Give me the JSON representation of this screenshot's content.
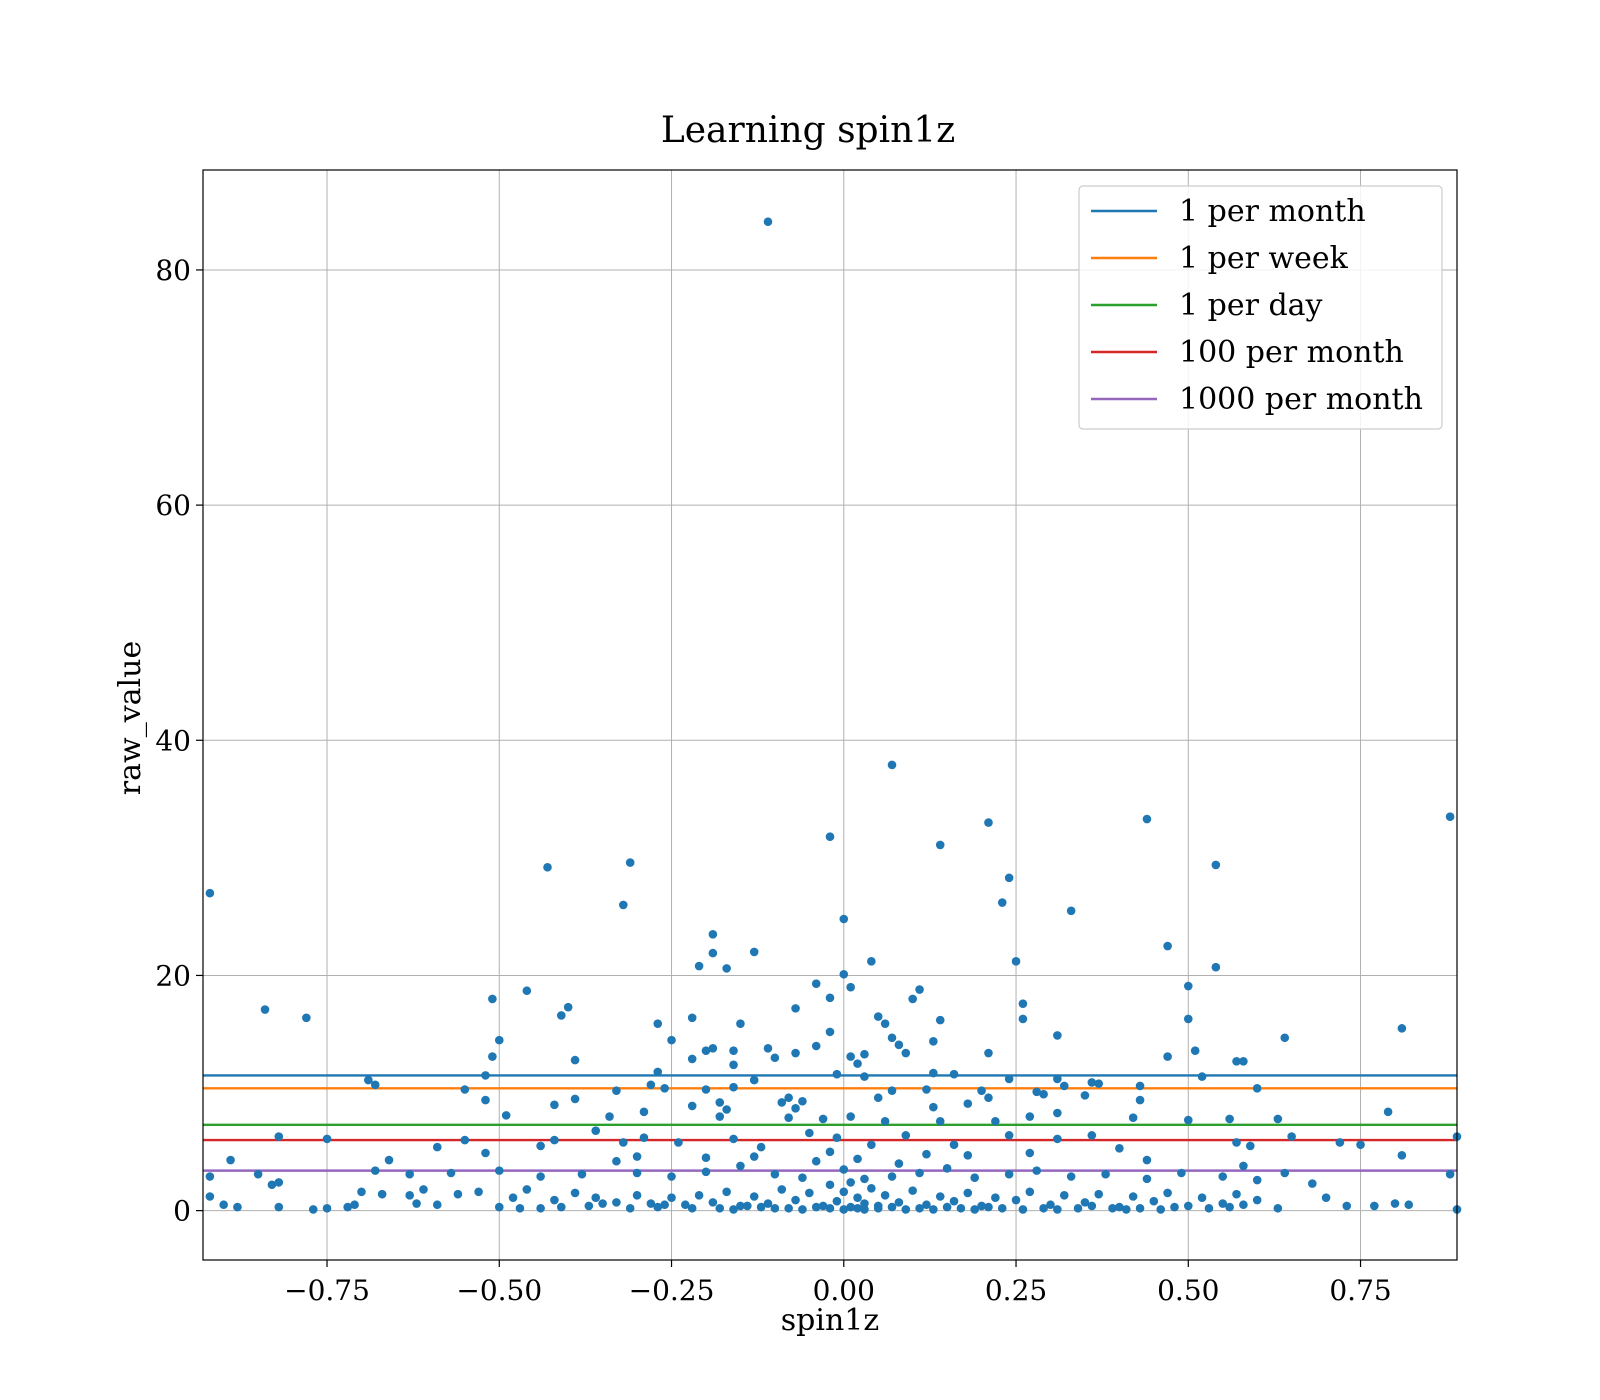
{
  "chart_data": {
    "type": "scatter",
    "title": "Learning spin1z",
    "xlabel": "spin1z",
    "ylabel": "raw_value",
    "xlim": [
      -0.93,
      0.89
    ],
    "ylim": [
      -4.2,
      88.5
    ],
    "x_ticks": [
      -0.75,
      -0.5,
      -0.25,
      0.0,
      0.25,
      0.5,
      0.75
    ],
    "x_tick_labels": [
      "−0.75",
      "−0.50",
      "−0.25",
      "0.00",
      "0.25",
      "0.50",
      "0.75"
    ],
    "y_ticks": [
      0,
      20,
      40,
      60,
      80
    ],
    "y_tick_labels": [
      "0",
      "20",
      "40",
      "60",
      "80"
    ],
    "grid": true,
    "legend_position": "top-right",
    "point_color": "#1f77b4",
    "hlines": [
      {
        "name": "1 per month",
        "y": 11.5,
        "color": "#1f77b4"
      },
      {
        "name": "1 per week",
        "y": 10.4,
        "color": "#ff7f0e"
      },
      {
        "name": "1 per day",
        "y": 7.3,
        "color": "#2ca02c"
      },
      {
        "name": "100 per month",
        "y": 6.0,
        "color": "#d62728"
      },
      {
        "name": "1000 per month",
        "y": 3.4,
        "color": "#9467bd"
      }
    ],
    "points": [
      [
        -0.11,
        84.1
      ],
      [
        0.07,
        37.9
      ],
      [
        -0.02,
        31.8
      ],
      [
        0.21,
        33.0
      ],
      [
        0.14,
        31.1
      ],
      [
        0.44,
        33.3
      ],
      [
        0.88,
        33.5
      ],
      [
        -0.92,
        27.0
      ],
      [
        -0.43,
        29.2
      ],
      [
        -0.31,
        29.6
      ],
      [
        -0.32,
        26.0
      ],
      [
        0.23,
        26.2
      ],
      [
        0.24,
        28.3
      ],
      [
        0.33,
        25.5
      ],
      [
        0.54,
        29.4
      ],
      [
        0.0,
        24.8
      ],
      [
        -0.19,
        23.5
      ],
      [
        -0.13,
        22.0
      ],
      [
        -0.19,
        21.9
      ],
      [
        -0.21,
        20.8
      ],
      [
        -0.17,
        20.6
      ],
      [
        0.04,
        21.2
      ],
      [
        0.25,
        21.2
      ],
      [
        0.47,
        22.5
      ],
      [
        0.54,
        20.7
      ],
      [
        0.0,
        20.1
      ],
      [
        -0.02,
        18.1
      ],
      [
        -0.46,
        18.7
      ],
      [
        -0.51,
        18.0
      ],
      [
        -0.4,
        17.3
      ],
      [
        -0.41,
        16.6
      ],
      [
        -0.84,
        17.1
      ],
      [
        -0.78,
        16.4
      ],
      [
        -0.07,
        17.2
      ],
      [
        -0.04,
        19.3
      ],
      [
        0.01,
        19.0
      ],
      [
        0.11,
        18.8
      ],
      [
        0.26,
        17.6
      ],
      [
        0.26,
        16.3
      ],
      [
        0.5,
        19.1
      ],
      [
        0.5,
        16.3
      ],
      [
        0.05,
        16.5
      ],
      [
        0.06,
        15.9
      ],
      [
        -0.27,
        15.9
      ],
      [
        -0.22,
        16.4
      ],
      [
        -0.15,
        15.9
      ],
      [
        0.14,
        16.2
      ],
      [
        0.81,
        15.5
      ],
      [
        -0.5,
        14.5
      ],
      [
        -0.51,
        13.1
      ],
      [
        -0.25,
        14.5
      ],
      [
        -0.19,
        13.8
      ],
      [
        -0.2,
        13.6
      ],
      [
        -0.16,
        13.6
      ],
      [
        -0.16,
        12.4
      ],
      [
        -0.11,
        13.8
      ],
      [
        -0.1,
        13.0
      ],
      [
        -0.07,
        13.4
      ],
      [
        -0.02,
        15.2
      ],
      [
        -0.04,
        14.0
      ],
      [
        0.01,
        13.1
      ],
      [
        0.03,
        13.3
      ],
      [
        0.07,
        14.7
      ],
      [
        0.08,
        14.1
      ],
      [
        0.09,
        13.4
      ],
      [
        0.13,
        14.4
      ],
      [
        0.21,
        13.4
      ],
      [
        0.31,
        14.9
      ],
      [
        0.47,
        13.1
      ],
      [
        0.51,
        13.6
      ],
      [
        0.57,
        12.7
      ],
      [
        0.58,
        12.7
      ],
      [
        0.64,
        14.7
      ],
      [
        -0.39,
        12.8
      ],
      [
        -0.22,
        12.9
      ],
      [
        -0.27,
        11.8
      ],
      [
        -0.13,
        11.1
      ],
      [
        -0.01,
        11.6
      ],
      [
        0.02,
        12.5
      ],
      [
        0.03,
        11.4
      ],
      [
        0.13,
        11.7
      ],
      [
        0.16,
        11.6
      ],
      [
        0.24,
        11.2
      ],
      [
        0.31,
        11.2
      ],
      [
        0.52,
        11.4
      ],
      [
        -0.52,
        11.5
      ],
      [
        -0.69,
        11.1
      ],
      [
        -0.68,
        10.7
      ],
      [
        -0.55,
        10.3
      ],
      [
        -0.33,
        10.2
      ],
      [
        -0.28,
        10.7
      ],
      [
        -0.26,
        10.4
      ],
      [
        -0.2,
        10.3
      ],
      [
        -0.16,
        10.5
      ],
      [
        -0.08,
        9.6
      ],
      [
        -0.06,
        9.3
      ],
      [
        0.05,
        9.6
      ],
      [
        0.07,
        10.2
      ],
      [
        0.12,
        10.3
      ],
      [
        0.2,
        10.2
      ],
      [
        0.28,
        10.1
      ],
      [
        0.32,
        10.6
      ],
      [
        0.36,
        10.9
      ],
      [
        0.37,
        10.8
      ],
      [
        0.43,
        10.6
      ],
      [
        0.6,
        10.4
      ],
      [
        -0.52,
        9.4
      ],
      [
        -0.42,
        9.0
      ],
      [
        -0.39,
        9.5
      ],
      [
        -0.22,
        8.9
      ],
      [
        -0.18,
        9.2
      ],
      [
        -0.17,
        8.6
      ],
      [
        -0.09,
        9.2
      ],
      [
        -0.07,
        8.7
      ],
      [
        0.13,
        8.8
      ],
      [
        0.18,
        9.1
      ],
      [
        0.21,
        9.6
      ],
      [
        0.29,
        9.9
      ],
      [
        0.35,
        9.8
      ],
      [
        0.43,
        9.4
      ],
      [
        -0.49,
        8.1
      ],
      [
        -0.34,
        8.0
      ],
      [
        -0.29,
        8.4
      ],
      [
        -0.18,
        8.0
      ],
      [
        -0.08,
        7.9
      ],
      [
        -0.03,
        7.8
      ],
      [
        0.01,
        8.0
      ],
      [
        0.06,
        7.6
      ],
      [
        0.14,
        7.6
      ],
      [
        0.22,
        7.6
      ],
      [
        0.27,
        8.0
      ],
      [
        0.31,
        8.3
      ],
      [
        0.42,
        7.9
      ],
      [
        0.5,
        7.7
      ],
      [
        0.56,
        7.8
      ],
      [
        0.63,
        7.8
      ],
      [
        0.79,
        8.4
      ],
      [
        -0.55,
        6.0
      ],
      [
        -0.52,
        4.9
      ],
      [
        -0.59,
        5.4
      ],
      [
        -0.42,
        6.0
      ],
      [
        -0.44,
        5.5
      ],
      [
        -0.36,
        6.8
      ],
      [
        -0.32,
        5.8
      ],
      [
        -0.29,
        6.2
      ],
      [
        -0.24,
        5.8
      ],
      [
        -0.16,
        6.1
      ],
      [
        -0.12,
        5.4
      ],
      [
        -0.05,
        6.6
      ],
      [
        -0.01,
        6.2
      ],
      [
        0.04,
        5.6
      ],
      [
        0.09,
        6.4
      ],
      [
        0.16,
        5.6
      ],
      [
        0.24,
        6.4
      ],
      [
        0.31,
        6.1
      ],
      [
        0.36,
        6.4
      ],
      [
        0.4,
        5.3
      ],
      [
        0.57,
        5.8
      ],
      [
        0.59,
        5.5
      ],
      [
        0.65,
        6.3
      ],
      [
        0.72,
        5.8
      ],
      [
        0.75,
        5.6
      ],
      [
        0.81,
        4.7
      ],
      [
        0.89,
        6.3
      ],
      [
        -0.82,
        6.3
      ],
      [
        -0.75,
        6.1
      ],
      [
        -0.66,
        4.3
      ],
      [
        -0.89,
        4.3
      ],
      [
        -0.85,
        3.1
      ],
      [
        -0.68,
        3.4
      ],
      [
        -0.63,
        3.1
      ],
      [
        -0.57,
        3.2
      ],
      [
        -0.5,
        3.4
      ],
      [
        -0.44,
        2.9
      ],
      [
        -0.38,
        3.1
      ],
      [
        -0.33,
        4.2
      ],
      [
        -0.3,
        3.2
      ],
      [
        -0.25,
        2.9
      ],
      [
        -0.2,
        3.3
      ],
      [
        -0.15,
        3.8
      ],
      [
        -0.1,
        3.1
      ],
      [
        -0.06,
        2.8
      ],
      [
        0.0,
        3.5
      ],
      [
        0.03,
        2.7
      ],
      [
        0.07,
        2.9
      ],
      [
        0.11,
        3.2
      ],
      [
        0.15,
        3.6
      ],
      [
        0.19,
        2.8
      ],
      [
        0.24,
        3.1
      ],
      [
        0.28,
        3.4
      ],
      [
        0.33,
        2.9
      ],
      [
        0.38,
        3.1
      ],
      [
        0.44,
        2.7
      ],
      [
        0.49,
        3.2
      ],
      [
        0.55,
        2.9
      ],
      [
        0.6,
        2.6
      ],
      [
        0.64,
        3.2
      ],
      [
        0.68,
        2.3
      ],
      [
        0.88,
        3.1
      ],
      [
        -0.92,
        2.9
      ],
      [
        -0.92,
        1.2
      ],
      [
        -0.83,
        2.2
      ],
      [
        -0.82,
        2.4
      ],
      [
        -0.7,
        1.6
      ],
      [
        -0.71,
        0.5
      ],
      [
        -0.67,
        1.4
      ],
      [
        -0.63,
        1.3
      ],
      [
        -0.61,
        1.8
      ],
      [
        -0.56,
        1.4
      ],
      [
        -0.53,
        1.6
      ],
      [
        -0.48,
        1.1
      ],
      [
        -0.46,
        1.8
      ],
      [
        -0.42,
        0.9
      ],
      [
        -0.39,
        1.5
      ],
      [
        -0.36,
        1.1
      ],
      [
        -0.33,
        0.7
      ],
      [
        -0.3,
        1.3
      ],
      [
        -0.28,
        0.6
      ],
      [
        -0.25,
        1.1
      ],
      [
        -0.23,
        0.5
      ],
      [
        -0.21,
        1.3
      ],
      [
        -0.19,
        0.7
      ],
      [
        -0.17,
        1.6
      ],
      [
        -0.15,
        0.4
      ],
      [
        -0.13,
        1.2
      ],
      [
        -0.11,
        0.6
      ],
      [
        -0.09,
        1.8
      ],
      [
        -0.07,
        0.9
      ],
      [
        -0.05,
        1.5
      ],
      [
        -0.03,
        0.4
      ],
      [
        -0.02,
        2.2
      ],
      [
        -0.01,
        0.8
      ],
      [
        0.0,
        1.6
      ],
      [
        0.01,
        0.3
      ],
      [
        0.01,
        2.4
      ],
      [
        0.02,
        1.1
      ],
      [
        0.03,
        0.6
      ],
      [
        0.04,
        1.9
      ],
      [
        0.05,
        0.4
      ],
      [
        0.06,
        1.3
      ],
      [
        0.08,
        0.7
      ],
      [
        0.1,
        1.7
      ],
      [
        0.12,
        0.5
      ],
      [
        0.14,
        1.2
      ],
      [
        0.16,
        0.8
      ],
      [
        0.18,
        1.5
      ],
      [
        0.2,
        0.4
      ],
      [
        0.22,
        1.1
      ],
      [
        0.25,
        0.9
      ],
      [
        0.27,
        1.6
      ],
      [
        0.3,
        0.5
      ],
      [
        0.32,
        1.3
      ],
      [
        0.35,
        0.7
      ],
      [
        0.37,
        1.4
      ],
      [
        0.4,
        0.3
      ],
      [
        0.42,
        1.2
      ],
      [
        0.45,
        0.8
      ],
      [
        0.47,
        1.5
      ],
      [
        0.5,
        0.4
      ],
      [
        0.52,
        1.1
      ],
      [
        0.55,
        0.6
      ],
      [
        0.57,
        1.4
      ],
      [
        0.6,
        0.9
      ],
      [
        0.63,
        0.2
      ],
      [
        0.7,
        1.1
      ],
      [
        0.73,
        0.4
      ],
      [
        0.77,
        0.4
      ],
      [
        0.8,
        0.6
      ],
      [
        0.82,
        0.5
      ],
      [
        0.89,
        0.1
      ],
      [
        -0.9,
        0.5
      ],
      [
        -0.88,
        0.3
      ],
      [
        -0.82,
        0.3
      ],
      [
        -0.77,
        0.1
      ],
      [
        -0.75,
        0.2
      ],
      [
        -0.72,
        0.3
      ],
      [
        -0.62,
        0.6
      ],
      [
        -0.59,
        0.5
      ],
      [
        -0.5,
        0.3
      ],
      [
        -0.47,
        0.2
      ],
      [
        -0.44,
        0.2
      ],
      [
        -0.41,
        0.3
      ],
      [
        -0.37,
        0.4
      ],
      [
        -0.35,
        0.6
      ],
      [
        -0.31,
        0.2
      ],
      [
        -0.27,
        0.3
      ],
      [
        -0.26,
        0.5
      ],
      [
        -0.22,
        0.2
      ],
      [
        -0.18,
        0.2
      ],
      [
        -0.16,
        0.1
      ],
      [
        -0.14,
        0.4
      ],
      [
        -0.12,
        0.3
      ],
      [
        -0.1,
        0.2
      ],
      [
        -0.08,
        0.2
      ],
      [
        -0.06,
        0.1
      ],
      [
        -0.04,
        0.3
      ],
      [
        -0.02,
        0.2
      ],
      [
        0.0,
        0.1
      ],
      [
        0.02,
        0.2
      ],
      [
        0.03,
        0.1
      ],
      [
        0.05,
        0.2
      ],
      [
        0.07,
        0.3
      ],
      [
        0.09,
        0.1
      ],
      [
        0.11,
        0.2
      ],
      [
        0.13,
        0.1
      ],
      [
        0.15,
        0.3
      ],
      [
        0.17,
        0.2
      ],
      [
        0.19,
        0.1
      ],
      [
        0.21,
        0.3
      ],
      [
        0.23,
        0.2
      ],
      [
        0.26,
        0.1
      ],
      [
        0.29,
        0.2
      ],
      [
        0.31,
        0.1
      ],
      [
        0.34,
        0.2
      ],
      [
        0.36,
        0.4
      ],
      [
        0.39,
        0.2
      ],
      [
        0.41,
        0.1
      ],
      [
        0.43,
        0.2
      ],
      [
        0.46,
        0.1
      ],
      [
        0.48,
        0.3
      ],
      [
        0.53,
        0.2
      ],
      [
        0.56,
        0.3
      ],
      [
        0.58,
        0.5
      ],
      [
        -0.04,
        4.2
      ],
      [
        -0.02,
        5.0
      ],
      [
        0.02,
        4.4
      ],
      [
        0.08,
        4.0
      ],
      [
        0.12,
        4.8
      ],
      [
        -0.13,
        4.6
      ],
      [
        0.18,
        4.7
      ],
      [
        -0.2,
        4.5
      ],
      [
        0.27,
        4.9
      ],
      [
        -0.3,
        4.6
      ],
      [
        0.44,
        4.3
      ],
      [
        0.58,
        3.8
      ],
      [
        0.1,
        18.0
      ]
    ]
  }
}
